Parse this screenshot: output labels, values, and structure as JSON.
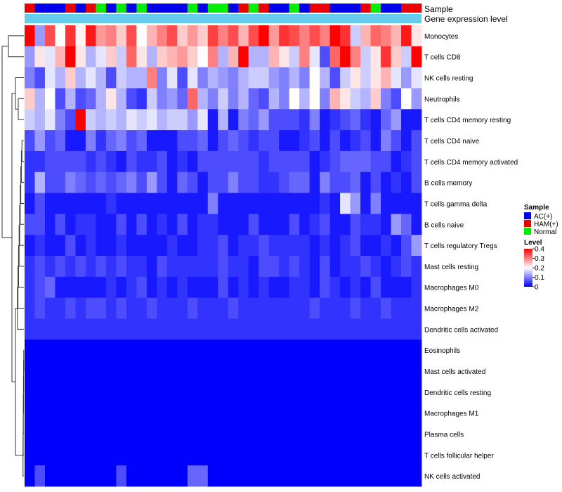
{
  "chart_data": {
    "type": "heatmap",
    "title": "",
    "annotation_tracks": [
      {
        "name": "Sample",
        "label": "Sample"
      },
      {
        "name": "Gene expression level",
        "label": "Gene expression level"
      }
    ],
    "gene_expression_level_color": "#66ccee",
    "sample_track": [
      "HAM(+)",
      "AC(+)",
      "AC(+)",
      "AC(+)",
      "HAM(+)",
      "AC(+)",
      "HAM(+)",
      "Normal",
      "AC(+)",
      "Normal",
      "AC(+)",
      "Normal",
      "AC(+)",
      "AC(+)",
      "AC(+)",
      "AC(+)",
      "Normal",
      "AC(+)",
      "Normal",
      "Normal",
      "AC(+)",
      "HAM(+)",
      "Normal",
      "HAM(+)",
      "AC(+)",
      "AC(+)",
      "Normal",
      "AC(+)",
      "HAM(+)",
      "HAM(+)",
      "AC(+)",
      "AC(+)",
      "AC(+)",
      "HAM(+)",
      "Normal",
      "AC(+)",
      "AC(+)",
      "HAM(+)",
      "HAM(+)"
    ],
    "rows": [
      "Monocytes",
      "T cells CD8",
      "NK cells resting",
      "Neutrophils",
      "T cells CD4 memory resting",
      "T cells CD4 naive",
      "T cells CD4 memory activated",
      "B cells memory",
      "T cells gamma delta",
      "B cells naive",
      "T cells regulatory  Tregs",
      "Mast cells resting",
      "Macrophages M0",
      "Macrophages M2",
      "Dendritic cells activated",
      "Eosinophils",
      "Mast cells activated",
      "Dendritic cells resting",
      "Macrophages M1",
      "Plasma cells",
      "T cells follicular helper",
      "NK cells activated"
    ],
    "values": [
      [
        0.4,
        0.12,
        0.34,
        0.2,
        0.36,
        0.21,
        0.38,
        0.28,
        0.3,
        0.24,
        0.34,
        0.2,
        0.26,
        0.3,
        0.34,
        0.24,
        0.28,
        0.24,
        0.35,
        0.3,
        0.34,
        0.26,
        0.34,
        0.4,
        0.28,
        0.36,
        0.34,
        0.3,
        0.34,
        0.3,
        0.4,
        0.36,
        0.16,
        0.26,
        0.32,
        0.3,
        0.26,
        0.38,
        0.22
      ],
      [
        0.12,
        0.22,
        0.18,
        0.26,
        0.4,
        0.22,
        0.14,
        0.18,
        0.24,
        0.16,
        0.32,
        0.22,
        0.14,
        0.24,
        0.26,
        0.28,
        0.24,
        0.2,
        0.3,
        0.14,
        0.26,
        0.4,
        0.14,
        0.14,
        0.26,
        0.22,
        0.16,
        0.3,
        0.18,
        0.06,
        0.32,
        0.4,
        0.3,
        0.16,
        0.22,
        0.36,
        0.24,
        0.16,
        0.4
      ],
      [
        0.1,
        0.06,
        0.18,
        0.14,
        0.24,
        0.14,
        0.18,
        0.14,
        0.06,
        0.16,
        0.14,
        0.14,
        0.3,
        0.1,
        0.18,
        0.06,
        0.18,
        0.1,
        0.14,
        0.12,
        0.1,
        0.14,
        0.16,
        0.16,
        0.12,
        0.1,
        0.14,
        0.1,
        0.2,
        0.14,
        0.06,
        0.16,
        0.22,
        0.16,
        0.22,
        0.26,
        0.18,
        0.12,
        0.18
      ],
      [
        0.24,
        0.14,
        0.2,
        0.06,
        0.14,
        0.06,
        0.08,
        0.14,
        0.22,
        0.14,
        0.06,
        0.04,
        0.16,
        0.1,
        0.12,
        0.08,
        0.32,
        0.14,
        0.1,
        0.16,
        0.1,
        0.14,
        0.08,
        0.06,
        0.14,
        0.1,
        0.2,
        0.14,
        0.2,
        0.1,
        0.26,
        0.22,
        0.16,
        0.14,
        0.24,
        0.1,
        0.06,
        0.2,
        0.12
      ],
      [
        0.16,
        0.14,
        0.18,
        0.1,
        0.06,
        0.4,
        0.16,
        0.14,
        0.16,
        0.14,
        0.18,
        0.16,
        0.18,
        0.14,
        0.16,
        0.16,
        0.12,
        0.18,
        0.02,
        0.14,
        0.02,
        0.1,
        0.08,
        0.12,
        0.06,
        0.06,
        0.06,
        0.04,
        0.1,
        0.02,
        0.04,
        0.06,
        0.08,
        0.04,
        0.02,
        0.08,
        0.12,
        0.02,
        0.02
      ],
      [
        0.06,
        0.12,
        0.06,
        0.08,
        0.02,
        0.02,
        0.1,
        0.04,
        0.08,
        0.1,
        0.06,
        0.08,
        0.02,
        0.02,
        0.02,
        0.06,
        0.06,
        0.08,
        0.02,
        0.06,
        0.08,
        0.06,
        0.04,
        0.06,
        0.06,
        0.02,
        0.02,
        0.04,
        0.06,
        0.02,
        0.06,
        0.02,
        0.04,
        0.06,
        0.02,
        0.1,
        0.06,
        0.02,
        0.06
      ],
      [
        0.04,
        0.04,
        0.06,
        0.06,
        0.06,
        0.06,
        0.04,
        0.06,
        0.04,
        0.02,
        0.06,
        0.04,
        0.04,
        0.06,
        0.02,
        0.04,
        0.02,
        0.06,
        0.06,
        0.06,
        0.06,
        0.06,
        0.06,
        0.04,
        0.06,
        0.06,
        0.06,
        0.06,
        0.02,
        0.04,
        0.06,
        0.08,
        0.08,
        0.08,
        0.06,
        0.06,
        0.02,
        0.04,
        0.06
      ],
      [
        0.04,
        0.14,
        0.06,
        0.06,
        0.1,
        0.08,
        0.06,
        0.08,
        0.06,
        0.08,
        0.1,
        0.06,
        0.12,
        0.06,
        0.02,
        0.08,
        0.06,
        0.02,
        0.06,
        0.06,
        0.1,
        0.06,
        0.06,
        0.04,
        0.04,
        0.06,
        0.08,
        0.08,
        0.02,
        0.1,
        0.06,
        0.06,
        0.08,
        0.02,
        0.06,
        0.02,
        0.04,
        0.02,
        0.06
      ],
      [
        0.02,
        0.06,
        0.02,
        0.02,
        0.02,
        0.02,
        0.02,
        0.02,
        0.04,
        0.02,
        0.02,
        0.02,
        0.02,
        0.02,
        0.02,
        0.02,
        0.02,
        0.02,
        0.1,
        0.02,
        0.02,
        0.02,
        0.02,
        0.02,
        0.02,
        0.02,
        0.02,
        0.02,
        0.02,
        0.04,
        0.02,
        0.18,
        0.12,
        0.02,
        0.1,
        0.02,
        0.02,
        0.02,
        0.02
      ],
      [
        0.06,
        0.06,
        0.02,
        0.06,
        0.02,
        0.04,
        0.04,
        0.02,
        0.02,
        0.06,
        0.02,
        0.06,
        0.02,
        0.04,
        0.02,
        0.06,
        0.02,
        0.04,
        0.04,
        0.02,
        0.02,
        0.02,
        0.06,
        0.02,
        0.02,
        0.02,
        0.06,
        0.02,
        0.04,
        0.06,
        0.02,
        0.02,
        0.06,
        0.04,
        0.04,
        0.02,
        0.12,
        0.08,
        0.02
      ],
      [
        0.02,
        0.04,
        0.02,
        0.02,
        0.06,
        0.02,
        0.04,
        0.02,
        0.02,
        0.04,
        0.02,
        0.02,
        0.02,
        0.02,
        0.04,
        0.02,
        0.02,
        0.04,
        0.04,
        0.06,
        0.02,
        0.04,
        0.04,
        0.06,
        0.04,
        0.04,
        0.04,
        0.04,
        0.02,
        0.04,
        0.02,
        0.04,
        0.06,
        0.02,
        0.02,
        0.04,
        0.02,
        0.06,
        0.12
      ],
      [
        0.04,
        0.06,
        0.04,
        0.06,
        0.04,
        0.06,
        0.04,
        0.06,
        0.04,
        0.06,
        0.04,
        0.04,
        0.02,
        0.06,
        0.04,
        0.04,
        0.04,
        0.04,
        0.04,
        0.06,
        0.04,
        0.04,
        0.02,
        0.06,
        0.06,
        0.04,
        0.06,
        0.04,
        0.02,
        0.06,
        0.02,
        0.04,
        0.04,
        0.06,
        0.04,
        0.02,
        0.04,
        0.06,
        0.04
      ],
      [
        0.04,
        0.06,
        0.08,
        0.02,
        0.02,
        0.02,
        0.02,
        0.02,
        0.04,
        0.02,
        0.04,
        0.06,
        0.02,
        0.04,
        0.02,
        0.04,
        0.02,
        0.02,
        0.02,
        0.06,
        0.02,
        0.04,
        0.02,
        0.04,
        0.02,
        0.02,
        0.04,
        0.04,
        0.02,
        0.06,
        0.04,
        0.02,
        0.04,
        0.02,
        0.06,
        0.02,
        0.02,
        0.02,
        0.04
      ],
      [
        0.04,
        0.06,
        0.04,
        0.04,
        0.06,
        0.04,
        0.06,
        0.06,
        0.04,
        0.06,
        0.04,
        0.04,
        0.06,
        0.04,
        0.04,
        0.04,
        0.06,
        0.04,
        0.04,
        0.04,
        0.06,
        0.04,
        0.04,
        0.04,
        0.04,
        0.04,
        0.04,
        0.04,
        0.06,
        0.04,
        0.04,
        0.04,
        0.06,
        0.04,
        0.04,
        0.06,
        0.04,
        0.04,
        0.04
      ],
      [
        0.04,
        0.04,
        0.04,
        0.04,
        0.04,
        0.04,
        0.04,
        0.04,
        0.04,
        0.04,
        0.04,
        0.04,
        0.04,
        0.04,
        0.04,
        0.04,
        0.04,
        0.04,
        0.04,
        0.04,
        0.04,
        0.04,
        0.04,
        0.04,
        0.04,
        0.04,
        0.04,
        0.04,
        0.04,
        0.04,
        0.04,
        0.04,
        0.04,
        0.04,
        0.04,
        0.04,
        0.04,
        0.04,
        0.04
      ],
      [
        0,
        0,
        0,
        0,
        0,
        0,
        0,
        0,
        0,
        0,
        0,
        0,
        0,
        0,
        0,
        0,
        0,
        0,
        0,
        0,
        0,
        0,
        0,
        0,
        0,
        0,
        0,
        0,
        0,
        0,
        0,
        0,
        0,
        0,
        0,
        0,
        0,
        0,
        0
      ],
      [
        0,
        0,
        0,
        0,
        0,
        0,
        0,
        0,
        0,
        0,
        0,
        0,
        0,
        0,
        0,
        0,
        0,
        0,
        0,
        0,
        0,
        0,
        0,
        0,
        0,
        0,
        0,
        0,
        0,
        0,
        0,
        0,
        0,
        0,
        0,
        0,
        0,
        0,
        0
      ],
      [
        0,
        0,
        0,
        0,
        0,
        0,
        0,
        0,
        0,
        0,
        0,
        0,
        0,
        0,
        0,
        0,
        0,
        0,
        0,
        0,
        0,
        0,
        0,
        0,
        0,
        0,
        0,
        0,
        0,
        0,
        0,
        0,
        0,
        0,
        0,
        0,
        0,
        0,
        0
      ],
      [
        0,
        0,
        0,
        0,
        0,
        0,
        0,
        0,
        0,
        0,
        0,
        0,
        0,
        0,
        0,
        0,
        0,
        0,
        0,
        0,
        0,
        0,
        0,
        0,
        0,
        0,
        0,
        0,
        0,
        0,
        0,
        0,
        0,
        0,
        0,
        0,
        0,
        0,
        0
      ],
      [
        0,
        0,
        0,
        0,
        0,
        0,
        0,
        0,
        0,
        0,
        0,
        0,
        0,
        0,
        0,
        0,
        0,
        0,
        0,
        0,
        0,
        0,
        0,
        0,
        0,
        0,
        0,
        0,
        0,
        0,
        0,
        0,
        0,
        0,
        0,
        0,
        0,
        0,
        0
      ],
      [
        0,
        0,
        0,
        0,
        0,
        0,
        0,
        0,
        0,
        0,
        0,
        0,
        0,
        0,
        0,
        0,
        0,
        0,
        0,
        0,
        0,
        0,
        0,
        0,
        0,
        0,
        0,
        0,
        0,
        0,
        0,
        0,
        0,
        0,
        0,
        0,
        0,
        0,
        0
      ],
      [
        0,
        0.06,
        0,
        0,
        0,
        0,
        0,
        0,
        0,
        0.06,
        0,
        0,
        0,
        0,
        0,
        0,
        0.08,
        0.08,
        0,
        0,
        0,
        0,
        0,
        0,
        0,
        0,
        0,
        0,
        0,
        0,
        0,
        0,
        0,
        0,
        0,
        0,
        0,
        0,
        0
      ]
    ],
    "color_scale": {
      "min": 0,
      "max": 0.4,
      "low": "#0000ff",
      "mid": "#ffffff",
      "high": "#ff0000"
    },
    "legend": {
      "sample_title": "Sample",
      "sample_entries": [
        {
          "label": "AC(+)",
          "color": "#0000ee"
        },
        {
          "label": "HAM(+)",
          "color": "#ee0000"
        },
        {
          "label": "Normal",
          "color": "#00ee00"
        }
      ],
      "level_title": "Level",
      "level_ticks": [
        "0.4",
        "0.3",
        "0.2",
        "0.1",
        "0"
      ],
      "placement": "right"
    },
    "row_dendrogram": "left"
  }
}
